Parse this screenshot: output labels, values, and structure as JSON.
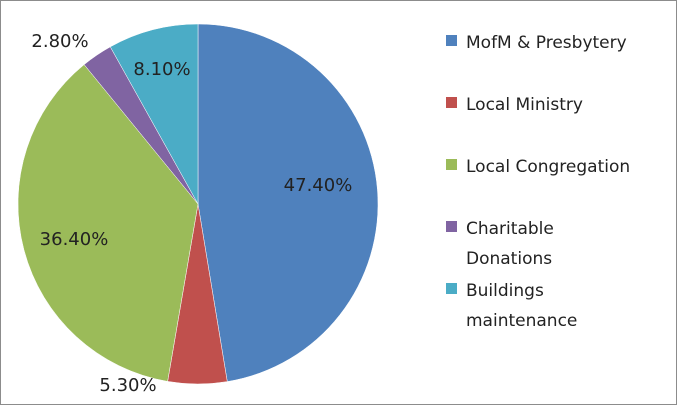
{
  "chart_data": {
    "type": "pie",
    "categories": [
      "MofM & Presbytery",
      "Local Ministry",
      "Local Congregation",
      "Charitable Donations",
      "Buildings maintenance"
    ],
    "values": [
      47.4,
      5.3,
      36.4,
      2.8,
      8.1
    ],
    "value_labels": [
      "47.40%",
      "5.30%",
      "36.40%",
      "2.80%",
      "8.10%"
    ],
    "colors": [
      "#4f81bd",
      "#c0504d",
      "#9bbb59",
      "#8064a2",
      "#4bacc6"
    ],
    "legend": "right"
  }
}
